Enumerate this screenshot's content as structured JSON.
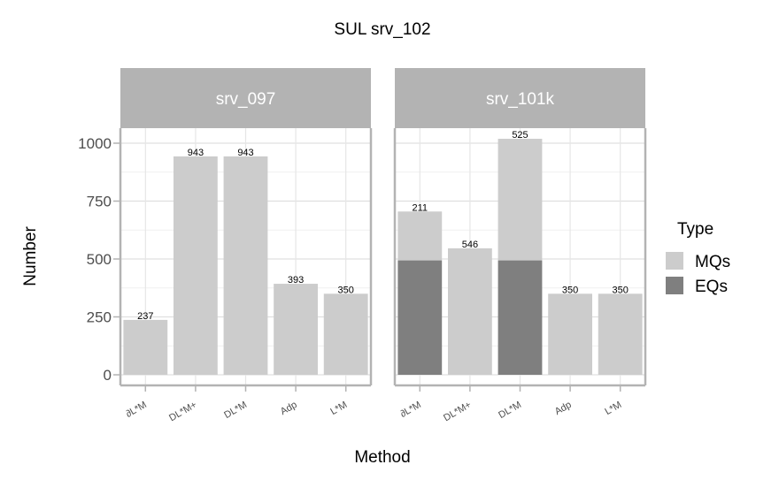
{
  "chart_data": {
    "type": "bar",
    "stacked": true,
    "title": "SUL  srv_102",
    "xlabel": "Method",
    "ylabel": "Number",
    "ylim": [
      0,
      1000
    ],
    "yticks": [
      0,
      250,
      500,
      750,
      1000
    ],
    "categories": [
      "∂L*M",
      "DL*M+",
      "DL*M",
      "Adp",
      "L*M"
    ],
    "legend": {
      "title": "Type",
      "position": "right",
      "entries": [
        {
          "name": "MQs",
          "color": "#cccccc"
        },
        {
          "name": "EQs",
          "color": "#7f7f7f"
        }
      ]
    },
    "panels": [
      {
        "label": "srv_097",
        "series": [
          {
            "name": "EQs",
            "color": "#7f7f7f",
            "values": [
              0,
              0,
              0,
              0,
              0
            ]
          },
          {
            "name": "MQs",
            "color": "#cccccc",
            "values": [
              237,
              943,
              943,
              393,
              350
            ]
          }
        ],
        "labels": {
          "EQs": [
            null,
            null,
            null,
            null,
            null
          ],
          "MQs": [
            "237",
            "943",
            "943",
            "393",
            "350"
          ]
        }
      },
      {
        "label": "srv_101k",
        "series": [
          {
            "name": "EQs",
            "color": "#7f7f7f",
            "values": [
              494,
              0,
              494,
              0,
              0
            ]
          },
          {
            "name": "MQs",
            "color": "#cccccc",
            "values": [
              211,
              546,
              525,
              350,
              350
            ]
          }
        ],
        "labels": {
          "EQs": [
            "494",
            null,
            "494",
            null,
            null
          ],
          "MQs": [
            "211",
            "546",
            "525",
            "350",
            "350"
          ]
        }
      }
    ],
    "grid": true
  }
}
